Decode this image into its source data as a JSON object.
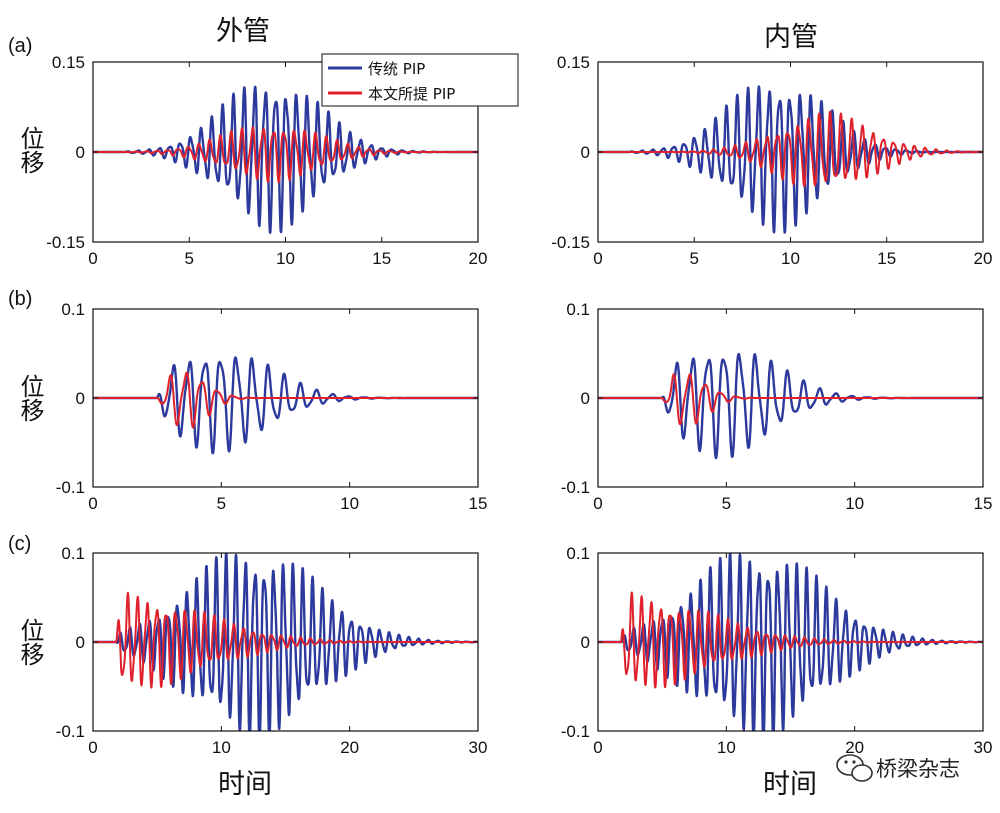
{
  "figure": {
    "col_titles": [
      "外管",
      "内管"
    ],
    "row_labels": [
      "(a)",
      "(b)",
      "(c)"
    ],
    "ylabel": "位移",
    "xlabel": "时间",
    "legend": [
      "传统 PIP",
      "本文所提 PIP"
    ],
    "watermark": "桥梁杂志",
    "watermark_icon": "wechat-icon",
    "colors": {
      "traditional": "#2b3a9c",
      "proposed": "#e0202a",
      "axes": "#111111"
    }
  },
  "chart_data": [
    {
      "type": "line",
      "id": "a-outer",
      "row_label": "(a)",
      "title": "外管",
      "xlabel": "",
      "ylabel": "位移",
      "xlim": [
        0,
        20
      ],
      "ylim": [
        -0.15,
        0.15
      ],
      "xticks": [
        "0",
        "5",
        "10",
        "15",
        "20"
      ],
      "yticks": [
        "-0.15",
        "0",
        "0.15"
      ],
      "legend_position": "top-right",
      "series": [
        {
          "name": "传统 PIP",
          "peak_amplitude": 0.12,
          "onset": 1.5,
          "peak_time": 9.3,
          "period": 0.55,
          "decay": 3.5
        },
        {
          "name": "本文所提 PIP",
          "peak_amplitude": 0.045,
          "onset": 1.5,
          "peak_time": 9.3,
          "period": 0.55,
          "decay": 3.5
        }
      ]
    },
    {
      "type": "line",
      "id": "a-inner",
      "row_label": "",
      "title": "内管",
      "xlabel": "",
      "ylabel": "",
      "xlim": [
        0,
        20
      ],
      "ylim": [
        -0.15,
        0.15
      ],
      "xticks": [
        "0",
        "5",
        "10",
        "15",
        "20"
      ],
      "yticks": [
        "-0.15",
        "0",
        "0.15"
      ],
      "series": [
        {
          "name": "传统 PIP",
          "peak_amplitude": 0.12,
          "onset": 1.5,
          "peak_time": 9.3,
          "period": 0.55,
          "decay": 3.5
        },
        {
          "name": "本文所提 PIP",
          "peak_amplitude": 0.06,
          "onset": 1.5,
          "peak_time": 11.8,
          "period": 0.55,
          "decay": 3.5
        }
      ]
    },
    {
      "type": "line",
      "id": "b-outer",
      "row_label": "(b)",
      "title": "",
      "xlabel": "",
      "ylabel": "位移",
      "xlim": [
        0,
        15
      ],
      "ylim": [
        -0.1,
        0.1
      ],
      "xticks": [
        "0",
        "5",
        "10",
        "15"
      ],
      "yticks": [
        "-0.1",
        "0",
        "0.1"
      ],
      "series": [
        {
          "name": "传统 PIP",
          "peak_amplitude": 0.055,
          "onset": 2.5,
          "peak_time": 4.9,
          "period": 0.62,
          "decay": 2.8
        },
        {
          "name": "本文所提 PIP",
          "peak_amplitude": 0.032,
          "onset": 2.5,
          "peak_time": 3.6,
          "period": 0.62,
          "decay": 1.2
        }
      ]
    },
    {
      "type": "line",
      "id": "b-inner",
      "row_label": "",
      "title": "",
      "xlabel": "",
      "ylabel": "",
      "xlim": [
        0,
        15
      ],
      "ylim": [
        -0.1,
        0.1
      ],
      "xticks": [
        "0",
        "5",
        "10",
        "15"
      ],
      "yticks": [
        "-0.1",
        "0",
        "0.1"
      ],
      "series": [
        {
          "name": "传统 PIP",
          "peak_amplitude": 0.06,
          "onset": 2.5,
          "peak_time": 4.9,
          "period": 0.62,
          "decay": 2.8
        },
        {
          "name": "本文所提 PIP",
          "peak_amplitude": 0.03,
          "onset": 2.5,
          "peak_time": 3.4,
          "period": 0.62,
          "decay": 1.2
        }
      ]
    },
    {
      "type": "line",
      "id": "c-outer",
      "row_label": "(c)",
      "title": "",
      "xlabel": "时间",
      "ylabel": "位移",
      "xlim": [
        0,
        30
      ],
      "ylim": [
        -0.1,
        0.1
      ],
      "xticks": [
        "0",
        "10",
        "20",
        "30"
      ],
      "yticks": [
        "-0.1",
        "0",
        "0.1"
      ],
      "series": [
        {
          "name": "传统 PIP",
          "peak_amplitude": 0.1,
          "onset": 1.8,
          "peak_time": 12.5,
          "period": 0.75,
          "decay": 7
        },
        {
          "name": "本文所提 PIP",
          "peak_amplitude": 0.05,
          "onset": 1.8,
          "peak_time": 2.3,
          "period": 0.75,
          "decay": 9
        }
      ]
    },
    {
      "type": "line",
      "id": "c-inner",
      "row_label": "",
      "title": "",
      "xlabel": "时间",
      "ylabel": "",
      "xlim": [
        0,
        30
      ],
      "ylim": [
        -0.1,
        0.1
      ],
      "xticks": [
        "0",
        "10",
        "20",
        "30"
      ],
      "yticks": [
        "-0.1",
        "0",
        "0.1"
      ],
      "series": [
        {
          "name": "传统 PIP",
          "peak_amplitude": 0.1,
          "onset": 1.8,
          "peak_time": 12.5,
          "period": 0.75,
          "decay": 7
        },
        {
          "name": "本文所提 PIP",
          "peak_amplitude": 0.05,
          "onset": 1.8,
          "peak_time": 2.3,
          "period": 0.75,
          "decay": 9
        }
      ]
    }
  ]
}
